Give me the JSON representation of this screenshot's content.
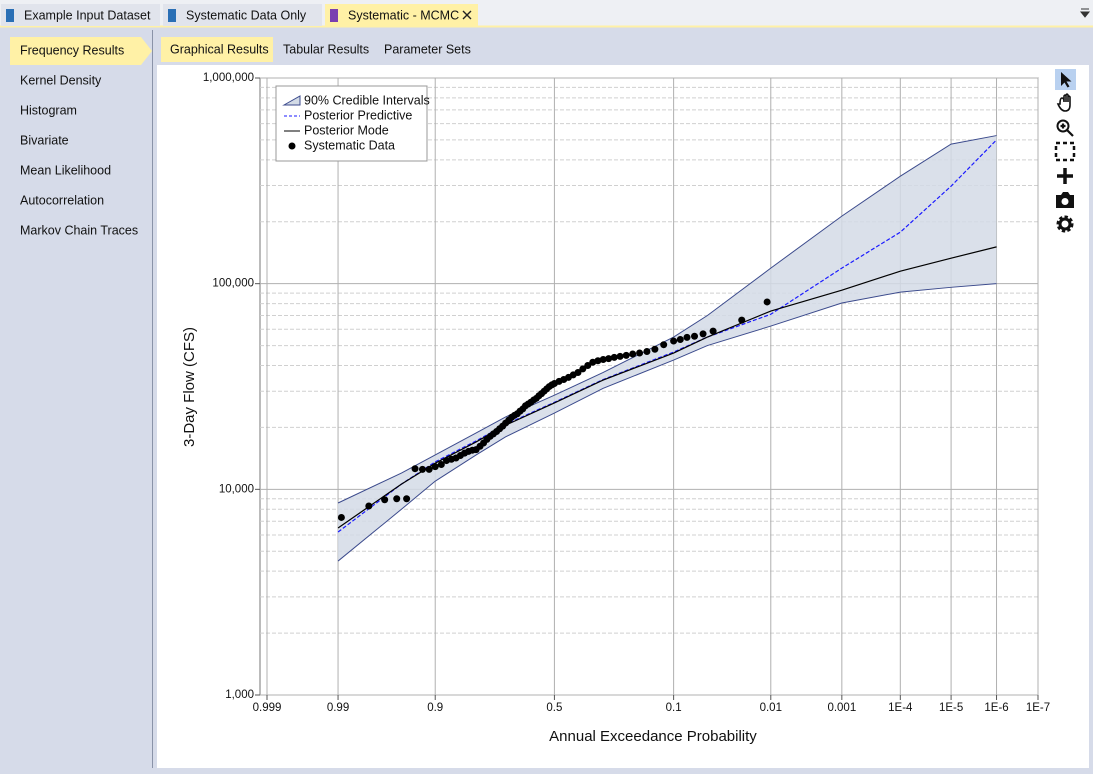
{
  "tabs": {
    "items": [
      "Example Input Dataset",
      "Systematic Data Only",
      "Systematic - MCMC"
    ],
    "active": 2
  },
  "sidebar": {
    "items": [
      "Frequency Results",
      "Kernel Density",
      "Histogram",
      "Bivariate",
      "Mean Likelihood",
      "Autocorrelation",
      "Markov Chain Traces"
    ],
    "active": 0
  },
  "subtabs": {
    "items": [
      "Graphical Results",
      "Tabular Results",
      "Parameter Sets"
    ],
    "active": 0
  },
  "chart_data": {
    "type": "probability",
    "x_scale": "normal-probability",
    "y_scale": "log",
    "xlabel": "Annual Exceedance Probability",
    "ylabel": "3-Day Flow (CFS)",
    "xlim": [
      0.999,
      1e-07
    ],
    "xticks": [
      0.999,
      0.99,
      0.9,
      0.5,
      0.1,
      0.01,
      0.001,
      {
        "value": 0.0001,
        "label": "1E-4"
      },
      {
        "value": 1e-05,
        "label": "1E-5"
      },
      {
        "value": 1e-06,
        "label": "1E-6"
      },
      {
        "value": 1e-07,
        "label": "1E-7"
      }
    ],
    "ylim": [
      1000,
      1000000
    ],
    "yticks": [
      {
        "value": 1000,
        "label": "1,000"
      },
      {
        "value": 10000,
        "label": "10,000"
      },
      {
        "value": 100000,
        "label": "100,000"
      },
      {
        "value": 1000000,
        "label": "1,000,000"
      }
    ],
    "grid": true,
    "minor_grid": true,
    "legend": "top-left",
    "x": [
      0.99,
      0.95,
      0.9,
      0.8,
      0.7,
      0.5,
      0.3,
      0.1,
      0.05,
      0.01,
      0.001,
      0.0001,
      1e-05,
      1e-06
    ],
    "series": [
      {
        "name": "90% Credible Intervals",
        "kind": "band",
        "color": "#3b4a8c",
        "fill": "#d3dbe6",
        "lower": [
          4480,
          8000,
          10960,
          14700,
          18000,
          23500,
          31000,
          42500,
          50000,
          62200,
          80500,
          91000,
          96000,
          100000
        ],
        "upper": [
          8580,
          12000,
          14700,
          18800,
          22500,
          28700,
          37000,
          55000,
          70000,
          119000,
          213000,
          333000,
          477000,
          525000
        ]
      },
      {
        "name": "Posterior Predictive",
        "kind": "line",
        "dashed": true,
        "color": "#1a1aff",
        "values": [
          6200,
          10600,
          13600,
          17200,
          20700,
          26500,
          34200,
          46500,
          55000,
          71000,
          119000,
          178000,
          298000,
          500000
        ]
      },
      {
        "name": "Posterior Mode",
        "kind": "line",
        "dashed": false,
        "color": "#000000",
        "values": [
          6490,
          10600,
          13400,
          17000,
          20500,
          26300,
          34000,
          46000,
          55000,
          73600,
          93000,
          115000,
          133000,
          151000
        ]
      },
      {
        "name": "Systematic Data",
        "kind": "scatter",
        "color": "#000000",
        "x": [
          0.989,
          0.977,
          0.966,
          0.955,
          0.944,
          0.933,
          0.922,
          0.911,
          0.9,
          0.888,
          0.877,
          0.866,
          0.855,
          0.844,
          0.833,
          0.822,
          0.811,
          0.8,
          0.788,
          0.777,
          0.766,
          0.755,
          0.744,
          0.733,
          0.722,
          0.711,
          0.7,
          0.688,
          0.677,
          0.666,
          0.655,
          0.644,
          0.633,
          0.622,
          0.611,
          0.6,
          0.588,
          0.577,
          0.566,
          0.555,
          0.544,
          0.533,
          0.522,
          0.511,
          0.5,
          0.48,
          0.46,
          0.44,
          0.42,
          0.4,
          0.38,
          0.36,
          0.34,
          0.32,
          0.3,
          0.28,
          0.26,
          0.24,
          0.22,
          0.2,
          0.18,
          0.16,
          0.14,
          0.12,
          0.1,
          0.088,
          0.077,
          0.066,
          0.055,
          0.044,
          0.022,
          0.0111
        ],
        "values": [
          7300,
          8300,
          8900,
          9000,
          9000,
          12600,
          12500,
          12500,
          12900,
          13200,
          13800,
          14000,
          14200,
          14600,
          15000,
          15300,
          15500,
          15600,
          16200,
          16800,
          17500,
          18100,
          18600,
          19100,
          19700,
          20300,
          21000,
          21700,
          22400,
          22900,
          23300,
          24000,
          24600,
          25500,
          26000,
          26500,
          27200,
          27700,
          28500,
          29200,
          30000,
          30800,
          31600,
          32200,
          32700,
          33500,
          34200,
          35000,
          36000,
          37000,
          38500,
          40000,
          41500,
          42200,
          42800,
          43200,
          43800,
          44300,
          44800,
          45500,
          46000,
          46800,
          48000,
          50500,
          52600,
          53500,
          54800,
          55500,
          57000,
          58800,
          66500,
          81500
        ]
      }
    ]
  }
}
